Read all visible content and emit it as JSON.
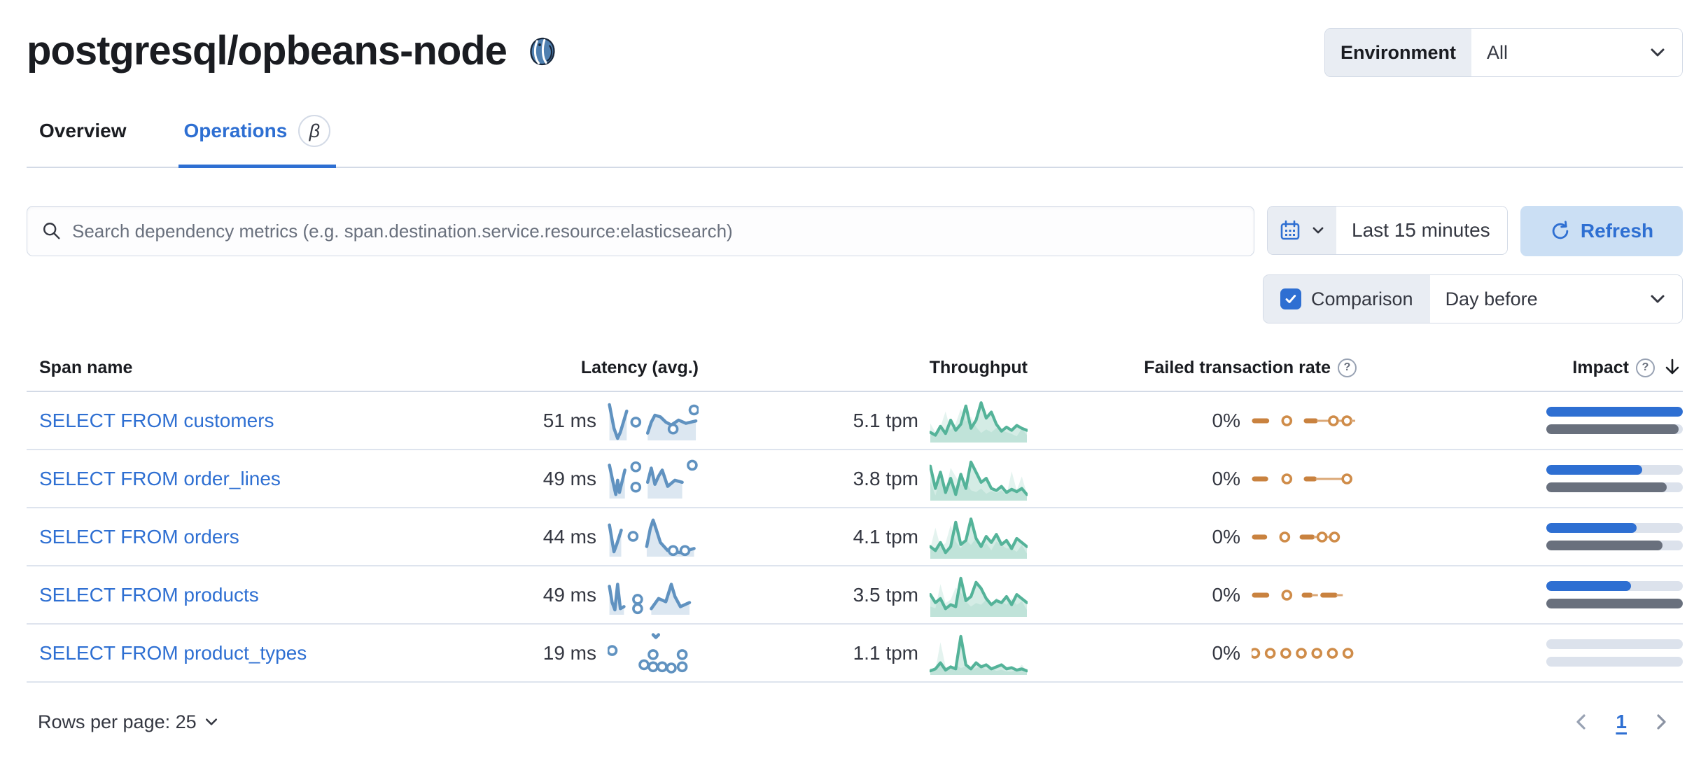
{
  "page": {
    "title": "postgresql/opbeans-node",
    "logo": "postgresql-elephant"
  },
  "environment": {
    "label": "Environment",
    "value": "All"
  },
  "tabs": [
    {
      "label": "Overview",
      "active": false
    },
    {
      "label": "Operations",
      "active": true,
      "beta": "β"
    }
  ],
  "toolbar": {
    "search_placeholder": "Search dependency metrics (e.g. span.destination.service.resource:elasticsearch)",
    "time_range": "Last 15 minutes",
    "refresh_label": "Refresh"
  },
  "comparison": {
    "label": "Comparison",
    "checked": true,
    "value": "Day before"
  },
  "colors": {
    "primary_blue": "#2e6fd2",
    "latency_spark": "#6092c0",
    "throughput_spark": "#54b399",
    "failed_spark": "#c9823f",
    "impact_bar": "#2e6fd2",
    "impact_comparison_bar": "#69707d",
    "bar_track": "#dce2ec",
    "border": "#d3dae6"
  },
  "table": {
    "columns": [
      "Span name",
      "Latency (avg.)",
      "Throughput",
      "Failed transaction rate",
      "Impact"
    ],
    "sorted_by": "Impact",
    "sort_direction": "desc",
    "rows": [
      {
        "span_name": "SELECT FROM customers",
        "latency": "51 ms",
        "throughput": "5.1 tpm",
        "failed_rate": "0%",
        "impact": {
          "current": 100,
          "previous": 97
        },
        "latency_spark": {
          "segments": [
            {
              "pts": [
                [
                  0.02,
                  0.12
                ],
                [
                  0.07,
                  0.7
                ],
                [
                  0.11,
                  0.95
                ],
                [
                  0.14,
                  0.8
                ],
                [
                  0.21,
                  0.28
                ]
              ],
              "area": true
            },
            {
              "pts": [
                [
                  0.44,
                  0.82
                ],
                [
                  0.48,
                  0.55
                ],
                [
                  0.52,
                  0.38
                ],
                [
                  0.58,
                  0.42
                ],
                [
                  0.64,
                  0.55
                ],
                [
                  0.7,
                  0.62
                ],
                [
                  0.78,
                  0.5
                ],
                [
                  0.86,
                  0.58
                ],
                [
                  0.97,
                  0.52
                ]
              ],
              "area": true
            }
          ],
          "dots": [
            [
              0.31,
              0.55
            ],
            [
              0.72,
              0.72
            ],
            [
              0.95,
              0.25
            ]
          ]
        },
        "throughput_spark": [
          0.25,
          0.18,
          0.4,
          0.22,
          0.55,
          0.3,
          0.45,
          0.9,
          0.35,
          0.55,
          0.98,
          0.6,
          0.75,
          0.45,
          0.28,
          0.38,
          0.3,
          0.42,
          0.35,
          0.3
        ],
        "failed_spark": [
          {
            "t": "dash",
            "x1": 0.0,
            "x2": 0.16
          },
          {
            "t": "dot",
            "x": 0.34
          },
          {
            "t": "dash",
            "x1": 0.5,
            "x2": 0.63
          },
          {
            "t": "conn",
            "x1": 0.63,
            "x2": 0.77
          },
          {
            "t": "dot",
            "x": 0.79
          },
          {
            "t": "conn",
            "x1": 0.84,
            "x2": 0.9
          },
          {
            "t": "dot",
            "x": 0.92
          },
          {
            "t": "conn",
            "x1": 0.96,
            "x2": 1.0
          }
        ]
      },
      {
        "span_name": "SELECT FROM order_lines",
        "latency": "49 ms",
        "throughput": "3.8 tpm",
        "failed_rate": "0%",
        "impact": {
          "current": 70,
          "previous": 88
        },
        "latency_spark": {
          "segments": [
            {
              "pts": [
                [
                  0.02,
                  0.18
                ],
                [
                  0.06,
                  0.6
                ],
                [
                  0.09,
                  0.9
                ],
                [
                  0.11,
                  0.55
                ],
                [
                  0.13,
                  0.85
                ],
                [
                  0.19,
                  0.3
                ]
              ],
              "area": true
            },
            {
              "pts": [
                [
                  0.44,
                  0.6
                ],
                [
                  0.48,
                  0.25
                ],
                [
                  0.52,
                  0.65
                ],
                [
                  0.56,
                  0.45
                ],
                [
                  0.6,
                  0.3
                ],
                [
                  0.66,
                  0.7
                ],
                [
                  0.74,
                  0.55
                ],
                [
                  0.82,
                  0.6
                ]
              ],
              "area": true
            }
          ],
          "dots": [
            [
              0.31,
              0.22
            ],
            [
              0.31,
              0.72
            ],
            [
              0.93,
              0.18
            ]
          ]
        },
        "throughput_spark": [
          0.85,
          0.3,
          0.7,
          0.2,
          0.55,
          0.15,
          0.65,
          0.3,
          0.95,
          0.7,
          0.45,
          0.55,
          0.3,
          0.25,
          0.35,
          0.2,
          0.28,
          0.22,
          0.3,
          0.15
        ],
        "failed_spark": [
          {
            "t": "dash",
            "x1": 0.0,
            "x2": 0.15
          },
          {
            "t": "dot",
            "x": 0.34
          },
          {
            "t": "dash",
            "x1": 0.5,
            "x2": 0.62
          },
          {
            "t": "conn",
            "x1": 0.62,
            "x2": 0.9
          },
          {
            "t": "dot",
            "x": 0.92
          }
        ]
      },
      {
        "span_name": "SELECT FROM orders",
        "latency": "44 ms",
        "throughput": "4.1 tpm",
        "failed_rate": "0%",
        "impact": {
          "current": 66,
          "previous": 85
        },
        "latency_spark": {
          "segments": [
            {
              "pts": [
                [
                  0.02,
                  0.22
                ],
                [
                  0.07,
                  0.88
                ],
                [
                  0.1,
                  0.7
                ],
                [
                  0.15,
                  0.35
                ]
              ],
              "area": true
            },
            {
              "pts": [
                [
                  0.43,
                  0.75
                ],
                [
                  0.47,
                  0.3
                ],
                [
                  0.5,
                  0.1
                ],
                [
                  0.53,
                  0.3
                ],
                [
                  0.58,
                  0.65
                ],
                [
                  0.66,
                  0.85
                ],
                [
                  0.8,
                  0.9
                ],
                [
                  0.95,
                  0.8
                ]
              ],
              "area": true
            }
          ],
          "dots": [
            [
              0.28,
              0.5
            ],
            [
              0.72,
              0.85
            ],
            [
              0.85,
              0.85
            ]
          ]
        },
        "throughput_spark": [
          0.3,
          0.2,
          0.4,
          0.15,
          0.3,
          0.9,
          0.35,
          0.45,
          0.98,
          0.5,
          0.3,
          0.55,
          0.4,
          0.6,
          0.35,
          0.45,
          0.25,
          0.5,
          0.4,
          0.3
        ],
        "failed_spark": [
          {
            "t": "dash",
            "x1": 0.0,
            "x2": 0.14
          },
          {
            "t": "dot",
            "x": 0.32
          },
          {
            "t": "dash",
            "x1": 0.46,
            "x2": 0.6
          },
          {
            "t": "conn",
            "x1": 0.6,
            "x2": 0.84
          },
          {
            "t": "dot",
            "x": 0.68
          },
          {
            "t": "dot",
            "x": 0.8
          }
        ]
      },
      {
        "span_name": "SELECT FROM products",
        "latency": "49 ms",
        "throughput": "3.5 tpm",
        "failed_rate": "0%",
        "impact": {
          "current": 62,
          "previous": 100
        },
        "latency_spark": {
          "segments": [
            {
              "pts": [
                [
                  0.02,
                  0.3
                ],
                [
                  0.05,
                  0.7
                ],
                [
                  0.08,
                  0.88
                ],
                [
                  0.11,
                  0.25
                ],
                [
                  0.14,
                  0.85
                ],
                [
                  0.18,
                  0.8
                ]
              ],
              "area": true
            },
            {
              "pts": [
                [
                  0.48,
                  0.85
                ],
                [
                  0.56,
                  0.6
                ],
                [
                  0.64,
                  0.68
                ],
                [
                  0.7,
                  0.25
                ],
                [
                  0.74,
                  0.55
                ],
                [
                  0.8,
                  0.8
                ],
                [
                  0.9,
                  0.7
                ]
              ],
              "area": true
            }
          ],
          "dots": [
            [
              0.33,
              0.62
            ],
            [
              0.33,
              0.85
            ]
          ]
        },
        "throughput_spark": [
          0.55,
          0.35,
          0.45,
          0.2,
          0.3,
          0.25,
          0.95,
          0.4,
          0.5,
          0.85,
          0.7,
          0.45,
          0.3,
          0.4,
          0.35,
          0.5,
          0.3,
          0.55,
          0.45,
          0.35
        ],
        "failed_spark": [
          {
            "t": "dash",
            "x1": 0.0,
            "x2": 0.16
          },
          {
            "t": "dot",
            "x": 0.34
          },
          {
            "t": "dash",
            "x1": 0.48,
            "x2": 0.58
          },
          {
            "t": "conn",
            "x1": 0.58,
            "x2": 0.64
          },
          {
            "t": "dash",
            "x1": 0.66,
            "x2": 0.82
          },
          {
            "t": "conn",
            "x1": 0.82,
            "x2": 0.88
          }
        ]
      },
      {
        "span_name": "SELECT FROM product_types",
        "latency": "19 ms",
        "throughput": "1.1 tpm",
        "failed_rate": "0%",
        "impact": {
          "current": 0,
          "previous": 0
        },
        "latency_spark": {
          "segments": [
            {
              "pts": [
                [
                  0.5,
                  0.06
                ],
                [
                  0.53,
                  0.13
                ],
                [
                  0.56,
                  0.06
                ]
              ],
              "area": false
            }
          ],
          "dots": [
            [
              0.05,
              0.45
            ],
            [
              0.4,
              0.8
            ],
            [
              0.5,
              0.55
            ],
            [
              0.5,
              0.85
            ],
            [
              0.6,
              0.85
            ],
            [
              0.7,
              0.88
            ],
            [
              0.82,
              0.55
            ],
            [
              0.82,
              0.85
            ]
          ]
        },
        "throughput_spark": [
          0.1,
          0.15,
          0.3,
          0.12,
          0.2,
          0.15,
          0.95,
          0.25,
          0.15,
          0.3,
          0.2,
          0.25,
          0.15,
          0.2,
          0.25,
          0.15,
          0.18,
          0.12,
          0.15,
          0.1
        ],
        "failed_spark": [
          {
            "t": "dot",
            "x": 0.03
          },
          {
            "t": "dot",
            "x": 0.18
          },
          {
            "t": "dot",
            "x": 0.33
          },
          {
            "t": "dot",
            "x": 0.48
          },
          {
            "t": "dot",
            "x": 0.63
          },
          {
            "t": "dot",
            "x": 0.78
          },
          {
            "t": "dot",
            "x": 0.93
          }
        ]
      }
    ]
  },
  "footer": {
    "rows_per_page": "Rows per page: 25",
    "current_page": "1"
  }
}
